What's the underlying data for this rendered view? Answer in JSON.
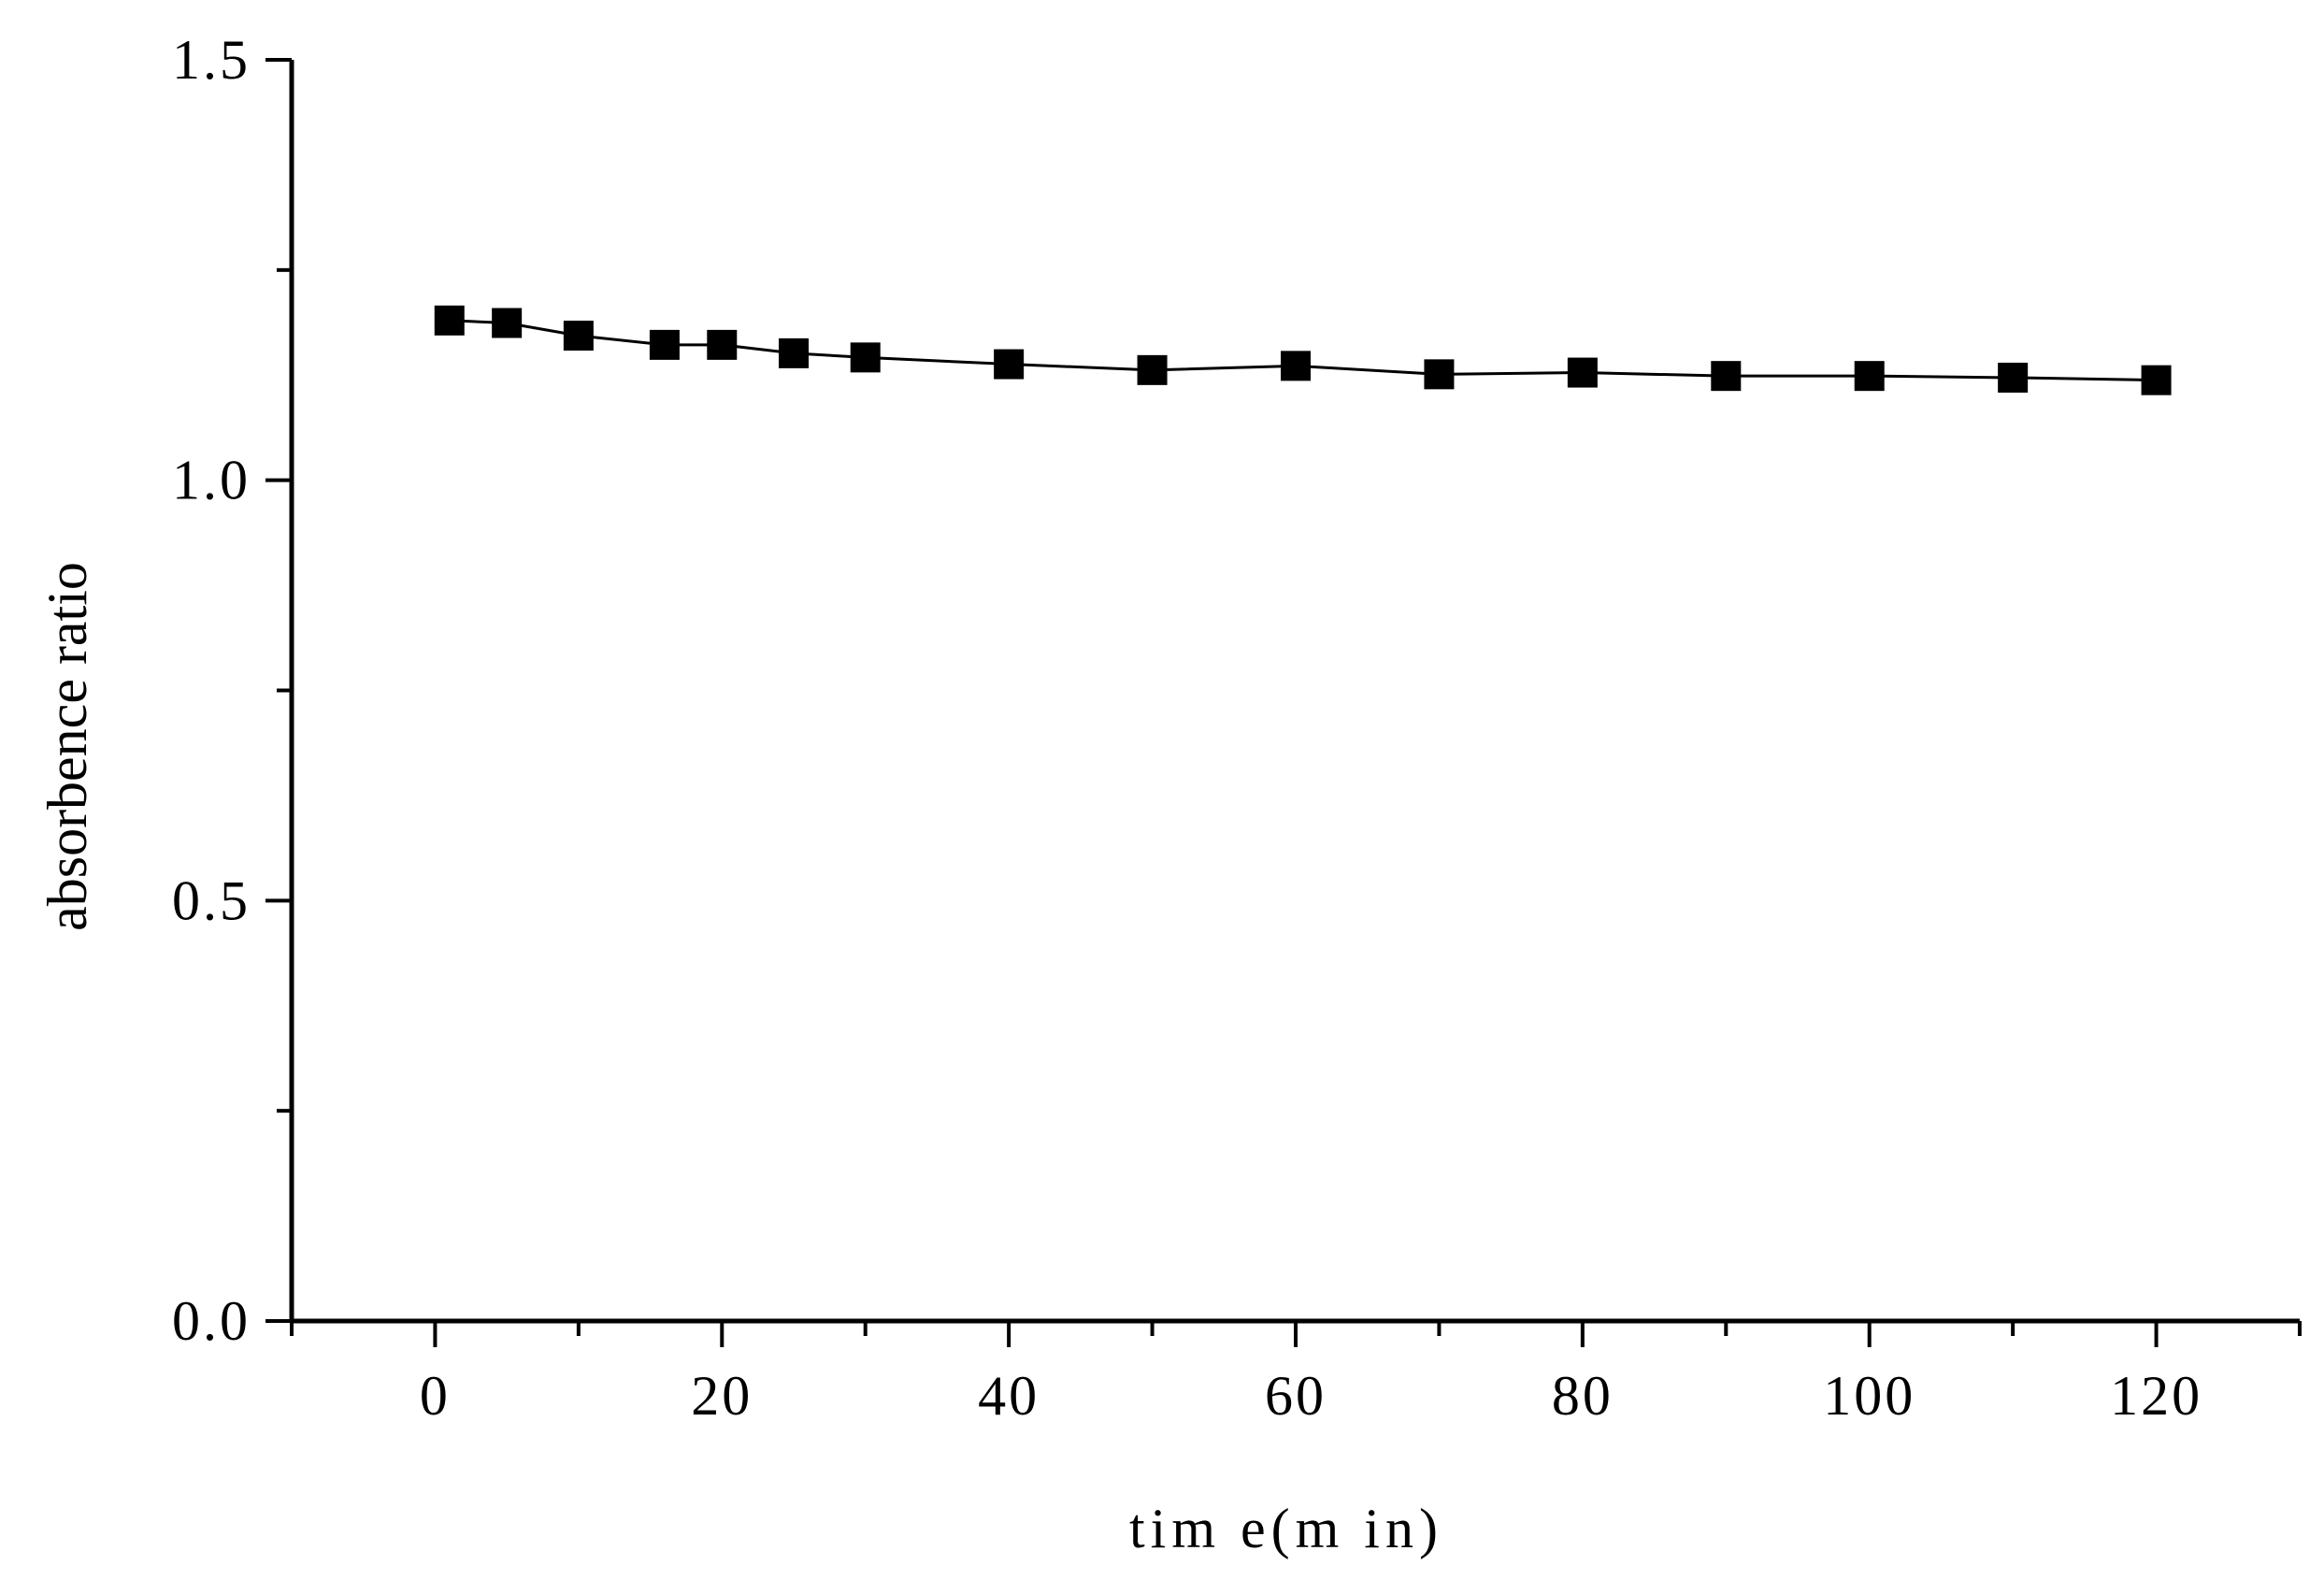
{
  "chart_data": {
    "type": "line",
    "title": "",
    "xlabel": "tim e(m in)",
    "ylabel": "absorbence ratio",
    "xlim": [
      -10,
      130
    ],
    "ylim": [
      0.0,
      1.5
    ],
    "x_ticks": [
      0,
      20,
      40,
      60,
      80,
      100,
      120
    ],
    "x_tick_labels": [
      "0",
      "20",
      "40",
      "60",
      "80",
      "100",
      "120"
    ],
    "x_minor_ticks": [
      -10,
      10,
      30,
      50,
      70,
      90,
      110,
      130
    ],
    "y_ticks": [
      0.0,
      0.5,
      1.0,
      1.5
    ],
    "y_tick_labels": [
      "0.0",
      "0.5",
      "1.0",
      "1.5"
    ],
    "y_minor_ticks": [
      0.25,
      0.75,
      1.25
    ],
    "grid": false,
    "legend": "none",
    "series": [
      {
        "marker": "square",
        "color": "#000000",
        "x": [
          1,
          5,
          10,
          16,
          20,
          25,
          30,
          40,
          50,
          60,
          70,
          80,
          90,
          100,
          110,
          120
        ],
        "values": [
          1.19,
          1.187,
          1.172,
          1.161,
          1.161,
          1.151,
          1.146,
          1.138,
          1.131,
          1.136,
          1.126,
          1.128,
          1.124,
          1.124,
          1.122,
          1.119
        ]
      }
    ]
  }
}
